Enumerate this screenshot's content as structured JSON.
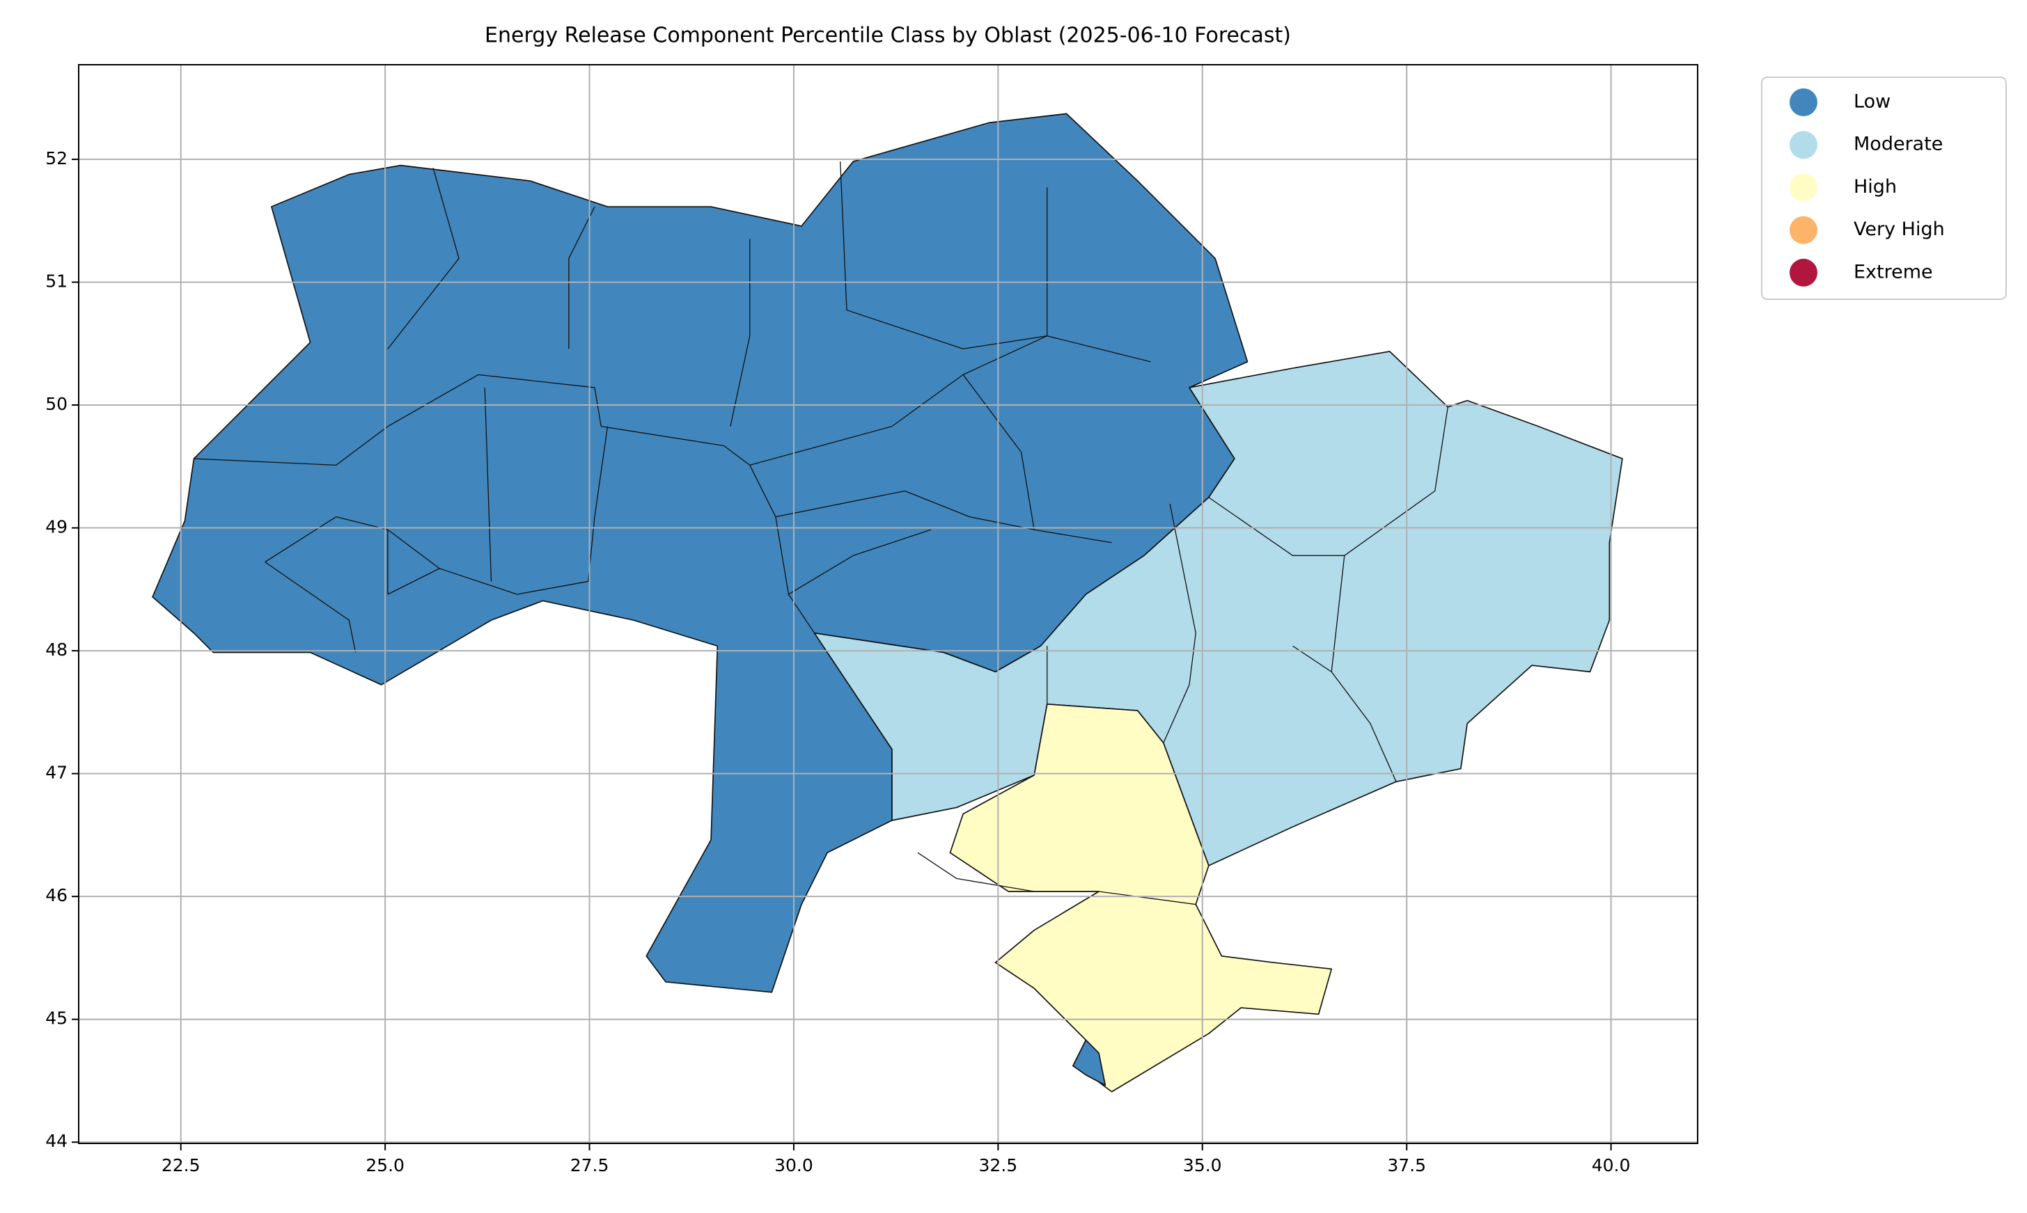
{
  "chart_data": {
    "type": "map",
    "title": "Energy Release Component Percentile Class by Oblast (2025-06-10 Forecast)",
    "xlim": [
      21.25,
      41.06
    ],
    "ylim": [
      43.99,
      52.77
    ],
    "xticks": [
      22.5,
      {
        "value": 25,
        "label": "25.0"
      },
      27.5,
      {
        "value": 30,
        "label": "30.0"
      },
      32.5,
      {
        "value": 35,
        "label": "35.0"
      },
      37.5,
      {
        "value": 40,
        "label": "40.0"
      }
    ],
    "yticks": [
      44,
      45,
      46,
      47,
      48,
      49,
      50,
      51,
      52
    ],
    "grid": true,
    "legend_loc": "upper right outside",
    "legend": [
      {
        "name": "Low",
        "color": "#4187bd"
      },
      {
        "name": "Moderate",
        "color": "#b2dcea"
      },
      {
        "name": "High",
        "color": "#fffdc4"
      },
      {
        "name": "Very High",
        "color": "#fcb46b"
      },
      {
        "name": "Extreme",
        "color": "#b1173e"
      }
    ]
  }
}
